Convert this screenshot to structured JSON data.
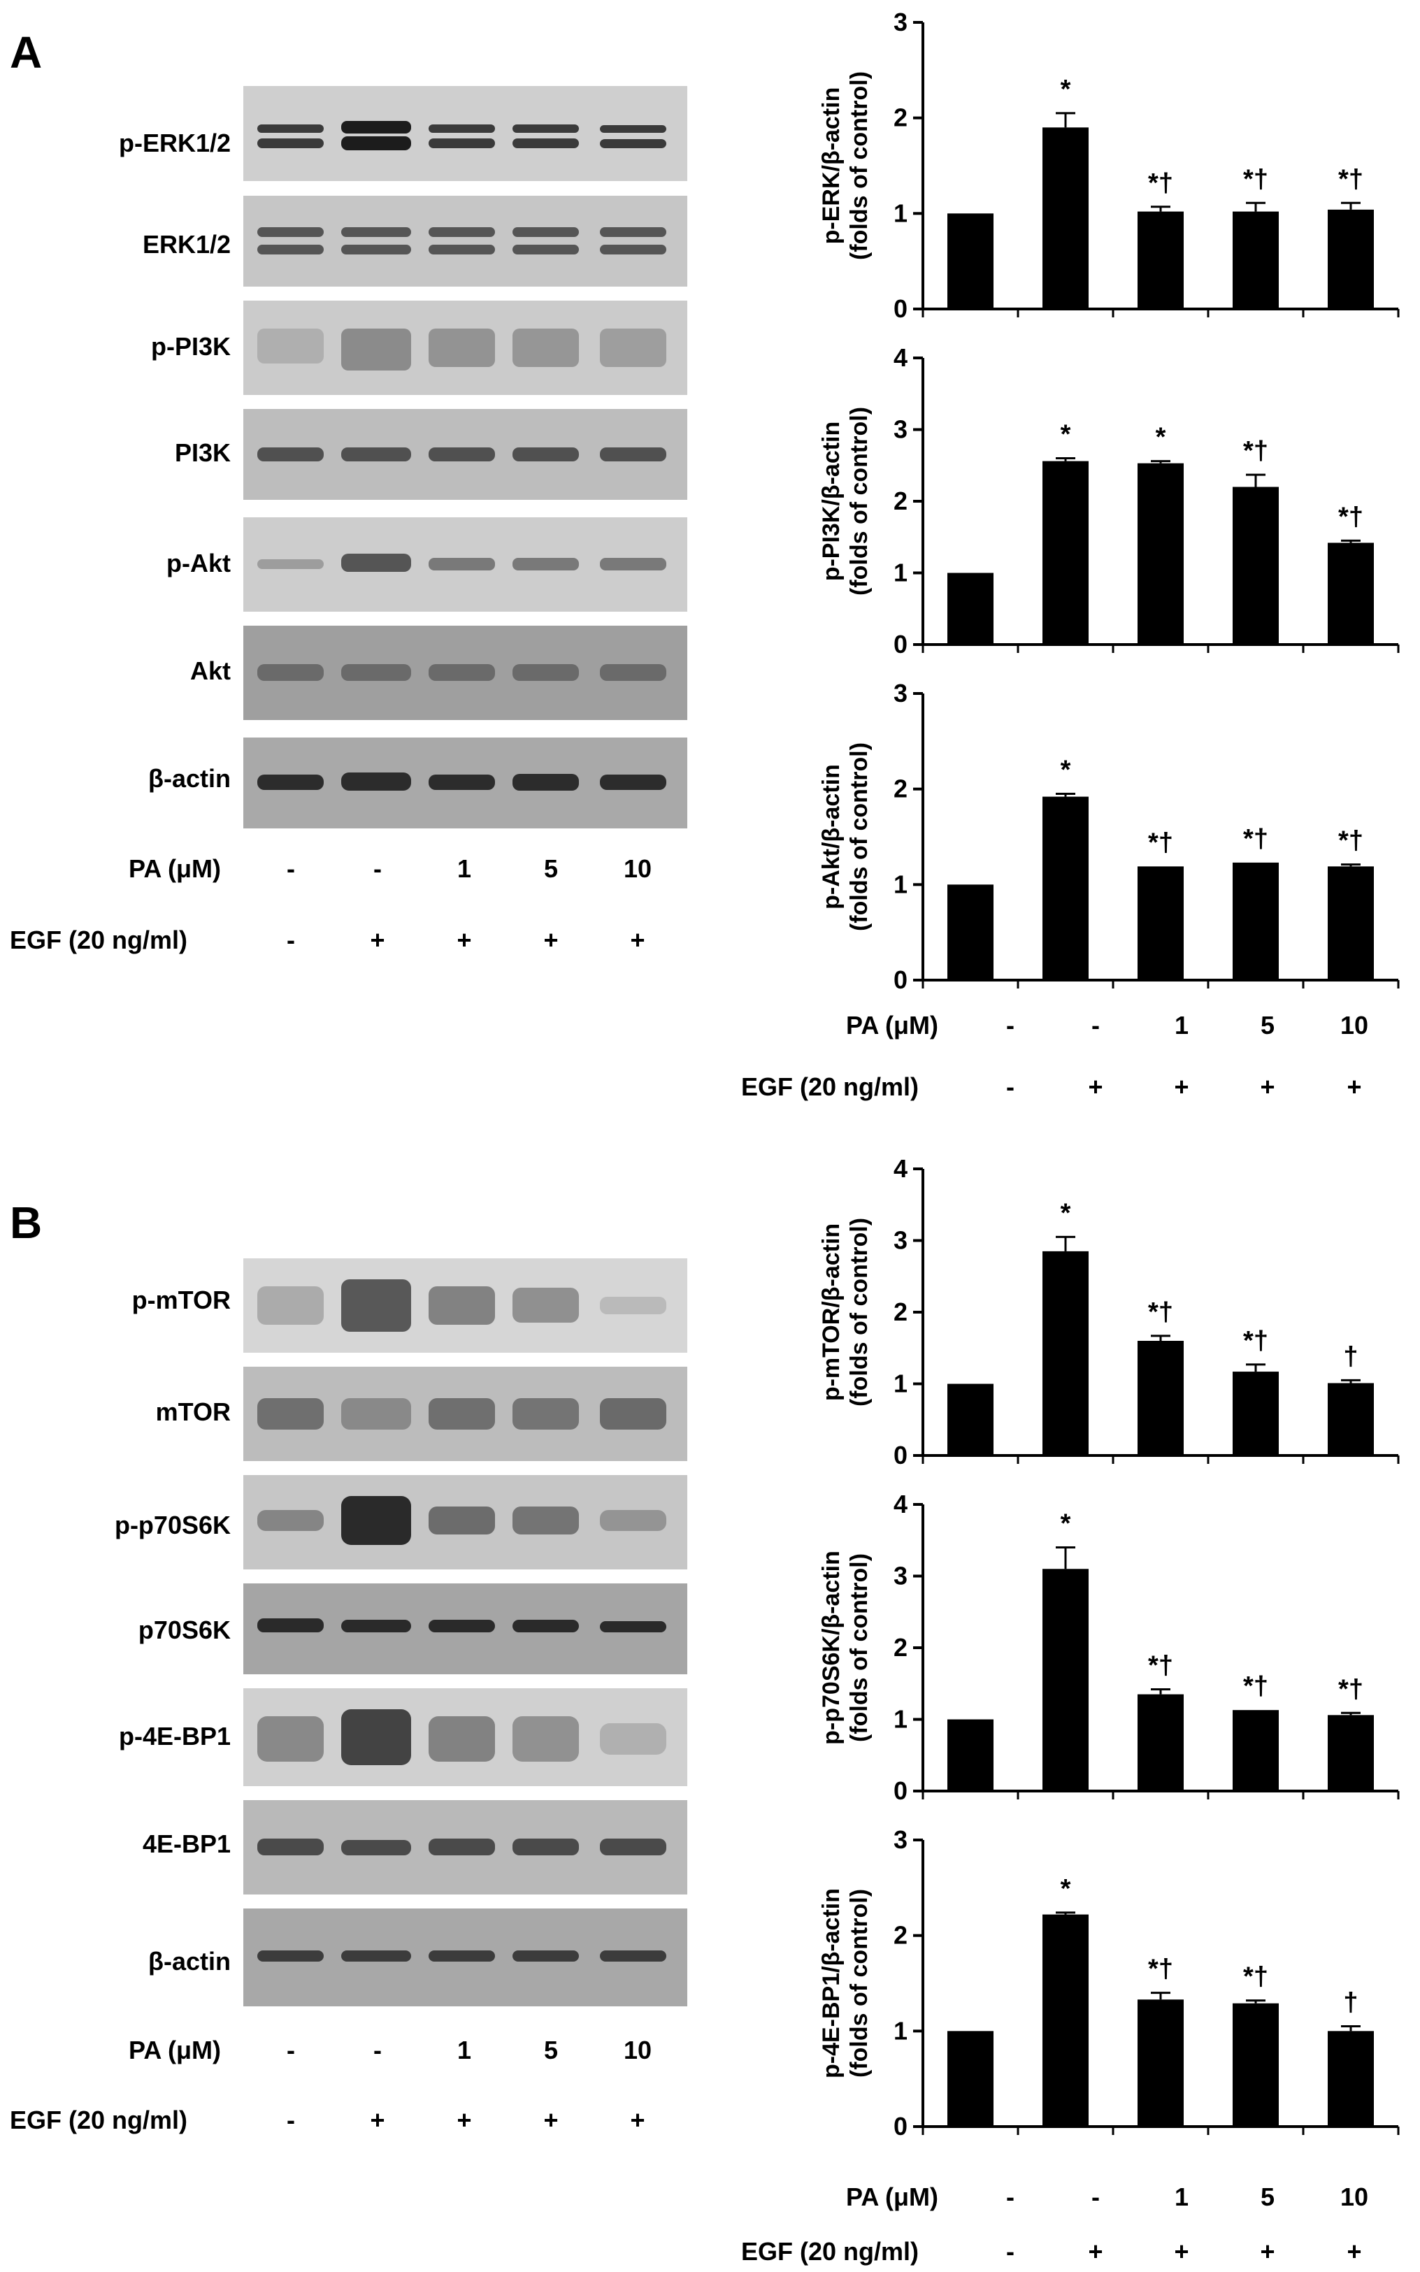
{
  "panels": [
    {
      "letter": "A",
      "blot_labels": [
        "p-ERK1/2",
        "ERK1/2",
        "p-PI3K",
        "PI3K",
        "p-Akt",
        "Akt",
        "β-actin"
      ],
      "pa_label": "PA (μM)",
      "pa_values": [
        "-",
        "-",
        "1",
        "5",
        "10"
      ],
      "egf_label": "EGF (20 ng/ml)",
      "egf_values": [
        "-",
        "+",
        "+",
        "+",
        "+"
      ]
    },
    {
      "letter": "B",
      "blot_labels": [
        "p-mTOR",
        "mTOR",
        "p-p70S6K",
        "p70S6K",
        "p-4E-BP1",
        "4E-BP1",
        "β-actin"
      ],
      "pa_label": "PA (μM)",
      "pa_values": [
        "-",
        "-",
        "1",
        "5",
        "10"
      ],
      "egf_label": "EGF (20 ng/ml)",
      "egf_values": [
        "-",
        "+",
        "+",
        "+",
        "+"
      ]
    }
  ],
  "chart_x_labels": {
    "pa_label": "PA (μM)",
    "pa_values": [
      "-",
      "-",
      "1",
      "5",
      "10"
    ],
    "egf_label": "EGF (20 ng/ml)",
    "egf_values": [
      "-",
      "+",
      "+",
      "+",
      "+"
    ]
  },
  "chart_data": [
    {
      "type": "bar",
      "panel": "A",
      "ylabel": [
        "p-ERK/β-actin",
        "(folds of control)"
      ],
      "ylim": [
        0,
        3
      ],
      "yticks": [
        0,
        1,
        2,
        3
      ],
      "values": [
        1.0,
        1.9,
        1.02,
        1.02,
        1.04
      ],
      "errors": [
        0,
        0.15,
        0.05,
        0.09,
        0.07
      ],
      "annotations": [
        "",
        "*",
        "*†",
        "*†",
        "*†"
      ]
    },
    {
      "type": "bar",
      "panel": "A",
      "ylabel": [
        "p-PI3K/β-actin",
        "(folds of control)"
      ],
      "ylim": [
        0,
        4
      ],
      "yticks": [
        0,
        1,
        2,
        3,
        4
      ],
      "values": [
        1.0,
        2.56,
        2.53,
        2.2,
        1.42
      ],
      "errors": [
        0,
        0.04,
        0.03,
        0.17,
        0.03
      ],
      "annotations": [
        "",
        "*",
        "*",
        "*†",
        "*†"
      ]
    },
    {
      "type": "bar",
      "panel": "A",
      "ylabel": [
        "p-Akt/β-actin",
        "(folds of control)"
      ],
      "ylim": [
        0,
        3
      ],
      "yticks": [
        0,
        1,
        2,
        3
      ],
      "values": [
        1.0,
        1.92,
        1.19,
        1.23,
        1.19
      ],
      "errors": [
        0,
        0.03,
        0,
        0,
        0.02
      ],
      "annotations": [
        "",
        "*",
        "*†",
        "*†",
        "*†"
      ]
    },
    {
      "type": "bar",
      "panel": "B",
      "ylabel": [
        "p-mTOR/β-actin",
        "(folds of control)"
      ],
      "ylim": [
        0,
        4
      ],
      "yticks": [
        0,
        1,
        2,
        3,
        4
      ],
      "values": [
        1.0,
        2.85,
        1.6,
        1.17,
        1.01
      ],
      "errors": [
        0,
        0.2,
        0.07,
        0.1,
        0.04
      ],
      "annotations": [
        "",
        "*",
        "*†",
        "*†",
        "†"
      ]
    },
    {
      "type": "bar",
      "panel": "B",
      "ylabel": [
        "p-p70S6K/β-actin",
        "(folds of control)"
      ],
      "ylim": [
        0,
        4
      ],
      "yticks": [
        0,
        1,
        2,
        3,
        4
      ],
      "values": [
        1.0,
        3.1,
        1.35,
        1.13,
        1.06
      ],
      "errors": [
        0,
        0.3,
        0.07,
        0,
        0.03
      ],
      "annotations": [
        "",
        "*",
        "*†",
        "*†",
        "*†"
      ]
    },
    {
      "type": "bar",
      "panel": "B",
      "ylabel": [
        "p-4E-BP1/β-actin",
        "(folds of control)"
      ],
      "ylim": [
        0,
        3
      ],
      "yticks": [
        0,
        1,
        2,
        3
      ],
      "values": [
        1.0,
        2.22,
        1.33,
        1.29,
        1.0
      ],
      "errors": [
        0,
        0.02,
        0.07,
        0.03,
        0.05
      ],
      "annotations": [
        "",
        "*",
        "*†",
        "*†",
        "†"
      ]
    }
  ]
}
